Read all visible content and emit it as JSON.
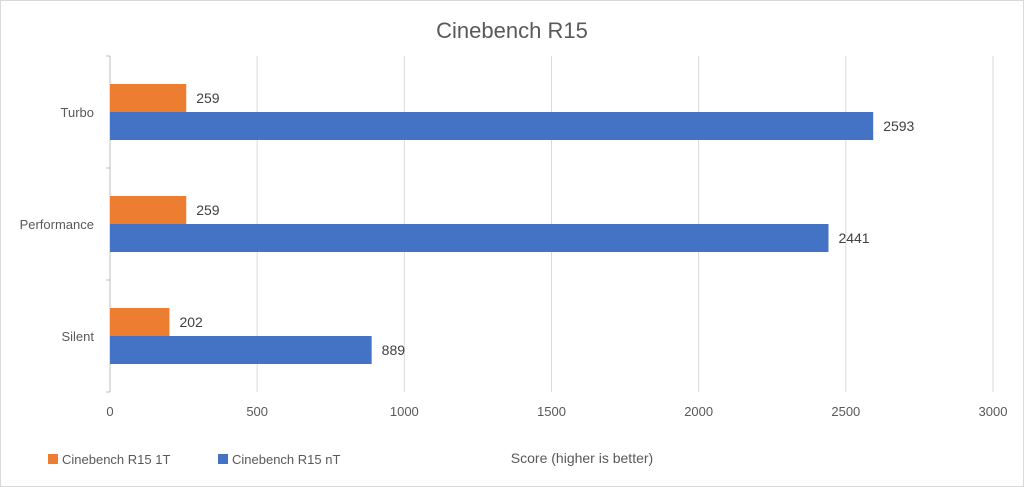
{
  "chart_data": {
    "type": "bar",
    "orientation": "horizontal",
    "title": "Cinebench R15",
    "xlabel": "Score (higher is better)",
    "ylabel": "",
    "categories": [
      "Turbo",
      "Performance",
      "Silent"
    ],
    "series": [
      {
        "name": "Cinebench R15 1T",
        "values": [
          259,
          259,
          202
        ],
        "color": "#ED7D31"
      },
      {
        "name": "Cinebench R15 nT",
        "values": [
          2593,
          2441,
          889
        ],
        "color": "#4472C4"
      }
    ],
    "xlim": [
      0,
      3000
    ],
    "xticks": [
      "0",
      "500",
      "1000",
      "1500",
      "2000",
      "2500",
      "3000"
    ],
    "grid": true,
    "legend_position": "bottom-left",
    "data_labels": true
  }
}
